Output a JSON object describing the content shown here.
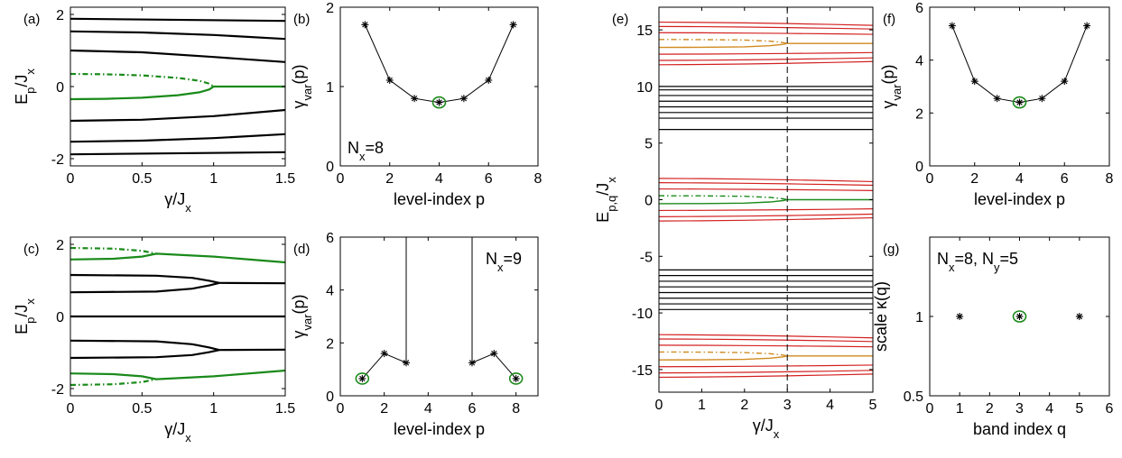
{
  "chart_data": [
    {
      "panel": "(a)",
      "type": "line",
      "xlabel_main": "γ/J",
      "xlabel_sub": "x",
      "ylabel_main": "E",
      "ylabel_sub1": "p",
      "ylabel_rest": "/J",
      "ylabel_sub2": "x",
      "xlim": [
        0,
        1.5
      ],
      "ylim": [
        -2.2,
        2.2
      ],
      "xticks": [
        0,
        0.5,
        1,
        1.5
      ],
      "xtick_labels": [
        "0",
        "0.5",
        "1",
        "1.5"
      ],
      "yticks": [
        -2,
        0,
        2
      ],
      "ytick_labels": [
        "-2",
        "0",
        "2"
      ],
      "series": [
        {
          "color": "#000000",
          "dash": "solid",
          "x": [
            0,
            1.5
          ],
          "y": [
            1.88,
            1.82
          ]
        },
        {
          "color": "#000000",
          "dash": "solid",
          "x": [
            0,
            0.5,
            1,
            1.5
          ],
          "y": [
            1.53,
            1.5,
            1.43,
            1.32
          ]
        },
        {
          "color": "#000000",
          "dash": "solid",
          "x": [
            0,
            0.5,
            1,
            1.5
          ],
          "y": [
            1.0,
            0.95,
            0.82,
            0.68
          ]
        },
        {
          "color": "#000000",
          "dash": "solid",
          "x": [
            0,
            0.5,
            1,
            1.5
          ],
          "y": [
            -0.95,
            -0.92,
            -0.82,
            -0.65
          ]
        },
        {
          "color": "#000000",
          "dash": "solid",
          "x": [
            0,
            0.5,
            1,
            1.5
          ],
          "y": [
            -1.53,
            -1.5,
            -1.43,
            -1.32
          ]
        },
        {
          "color": "#000000",
          "dash": "solid",
          "x": [
            0,
            1.5
          ],
          "y": [
            -1.88,
            -1.82
          ]
        },
        {
          "color": "#1a8a1a",
          "dash": "dashdot",
          "x": [
            0,
            0.25,
            0.5,
            0.75,
            0.9,
            0.97,
            1.0
          ],
          "y": [
            0.35,
            0.34,
            0.31,
            0.24,
            0.16,
            0.08,
            0.0
          ]
        },
        {
          "color": "#1a8a1a",
          "dash": "solid",
          "x": [
            0,
            0.25,
            0.5,
            0.75,
            0.9,
            0.97,
            1.0,
            1.5
          ],
          "y": [
            -0.35,
            -0.34,
            -0.31,
            -0.24,
            -0.16,
            -0.08,
            0.0,
            0.0
          ]
        }
      ]
    },
    {
      "panel": "(b)",
      "type": "line",
      "ylabel_main": "γ",
      "ylabel_sub1": "var",
      "ylabel_rest": "(p)",
      "xlabel": "level-index p",
      "annotation_main": "N",
      "annotation_sub": "x",
      "annotation_rest": "=8",
      "xlim": [
        0,
        8
      ],
      "ylim": [
        0,
        2
      ],
      "xticks": [
        0,
        2,
        4,
        6,
        8
      ],
      "xtick_labels": [
        "0",
        "2",
        "4",
        "6",
        "8"
      ],
      "yticks": [
        0,
        1,
        2
      ],
      "ytick_labels": [
        "0",
        "1",
        "2"
      ],
      "x": [
        1,
        2,
        3,
        4,
        5,
        6,
        7
      ],
      "y": [
        1.78,
        1.08,
        0.85,
        0.8,
        0.85,
        1.08,
        1.78
      ],
      "highlight_x": 4
    },
    {
      "panel": "(c)",
      "type": "line",
      "xlabel_main": "γ/J",
      "xlabel_sub": "x",
      "ylabel_main": "E",
      "ylabel_sub1": "p",
      "ylabel_rest": "/J",
      "ylabel_sub2": "x",
      "xlim": [
        0,
        1.5
      ],
      "ylim": [
        -2.2,
        2.2
      ],
      "xticks": [
        0,
        0.5,
        1,
        1.5
      ],
      "xtick_labels": [
        "0",
        "0.5",
        "1",
        "1.5"
      ],
      "yticks": [
        -2,
        0,
        2
      ],
      "ytick_labels": [
        "-2",
        "0",
        "2"
      ],
      "series": [
        {
          "color": "#000000",
          "dash": "solid",
          "x": [
            0,
            0.6,
            0.85,
            0.97,
            1.04
          ],
          "y": [
            1.15,
            1.13,
            1.07,
            0.99,
            0.93
          ]
        },
        {
          "color": "#000000",
          "dash": "solid",
          "x": [
            0,
            0.6,
            0.85,
            0.97,
            1.04
          ],
          "y": [
            0.67,
            0.69,
            0.77,
            0.86,
            0.93
          ]
        },
        {
          "color": "#000000",
          "dash": "solid",
          "x": [
            1.04,
            1.5
          ],
          "y": [
            0.93,
            0.92
          ]
        },
        {
          "color": "#000000",
          "dash": "solid",
          "x": [
            0,
            1.5
          ],
          "y": [
            0,
            0
          ]
        },
        {
          "color": "#000000",
          "dash": "solid",
          "x": [
            0,
            0.6,
            0.85,
            0.97,
            1.04
          ],
          "y": [
            -1.15,
            -1.13,
            -1.07,
            -0.99,
            -0.93
          ]
        },
        {
          "color": "#000000",
          "dash": "solid",
          "x": [
            0,
            0.6,
            0.85,
            0.97,
            1.04
          ],
          "y": [
            -0.67,
            -0.69,
            -0.77,
            -0.86,
            -0.93
          ]
        },
        {
          "color": "#000000",
          "dash": "solid",
          "x": [
            1.04,
            1.5
          ],
          "y": [
            -0.93,
            -0.92
          ]
        },
        {
          "color": "#1a8a1a",
          "dash": "dashdot",
          "x": [
            0,
            0.3,
            0.5,
            0.6
          ],
          "y": [
            1.9,
            1.88,
            1.82,
            1.74
          ]
        },
        {
          "color": "#1a8a1a",
          "dash": "solid",
          "x": [
            0,
            0.3,
            0.5,
            0.6,
            1.0,
            1.5
          ],
          "y": [
            1.58,
            1.6,
            1.66,
            1.74,
            1.66,
            1.5
          ]
        },
        {
          "color": "#1a8a1a",
          "dash": "dashdot",
          "x": [
            0,
            0.3,
            0.5,
            0.6
          ],
          "y": [
            -1.9,
            -1.88,
            -1.82,
            -1.74
          ]
        },
        {
          "color": "#1a8a1a",
          "dash": "solid",
          "x": [
            0,
            0.3,
            0.5,
            0.6,
            1.0,
            1.5
          ],
          "y": [
            -1.58,
            -1.6,
            -1.66,
            -1.74,
            -1.66,
            -1.5
          ]
        }
      ]
    },
    {
      "panel": "(d)",
      "type": "line",
      "ylabel_main": "γ",
      "ylabel_sub1": "var",
      "ylabel_rest": "(p)",
      "xlabel": "level-index p",
      "annotation_main": "N",
      "annotation_sub": "x",
      "annotation_rest": "=9",
      "xlim": [
        0,
        9
      ],
      "ylim": [
        0,
        6
      ],
      "xticks": [
        0,
        2,
        4,
        6,
        8
      ],
      "xtick_labels": [
        "0",
        "2",
        "4",
        "6",
        "8"
      ],
      "yticks": [
        0,
        2,
        4,
        6
      ],
      "ytick_labels": [
        "0",
        "2",
        "4",
        "6"
      ],
      "segments": [
        {
          "x": [
            1,
            2,
            3,
            3
          ],
          "y": [
            0.65,
            1.6,
            1.25,
            6.5
          ]
        },
        {
          "x": [
            6,
            6,
            7,
            8
          ],
          "y": [
            6.5,
            1.25,
            1.6,
            0.65
          ]
        }
      ],
      "points_x": [
        1,
        2,
        3,
        6,
        7,
        8
      ],
      "points_y": [
        0.65,
        1.6,
        1.25,
        1.25,
        1.6,
        0.65
      ],
      "highlight_x": [
        1,
        8
      ]
    },
    {
      "panel": "(e)",
      "type": "line",
      "xlabel_main": "γ/J",
      "xlabel_sub": "x",
      "ylabel_main": "E",
      "ylabel_sub1": "p,q",
      "ylabel_rest": "/J",
      "ylabel_sub2": "x",
      "xlim": [
        0,
        5
      ],
      "ylim": [
        -17,
        17
      ],
      "xticks": [
        0,
        1,
        2,
        3,
        4,
        5
      ],
      "xtick_labels": [
        "0",
        "1",
        "2",
        "3",
        "4",
        "5"
      ],
      "yticks": [
        -15,
        -10,
        -5,
        0,
        5,
        10,
        15
      ],
      "ytick_labels": [
        "-15",
        "-10",
        "-5",
        "0",
        "5",
        "10",
        "15"
      ],
      "vline_x": 3,
      "black_levels": [
        6.2,
        7.2,
        7.7,
        8.2,
        8.7,
        9.2,
        9.7,
        10.0,
        -6.2,
        -6.7,
        -7.2,
        -7.7,
        -8.2,
        -8.7,
        -9.2,
        -9.7
      ],
      "red_bands": [
        {
          "center": 13.8,
          "levels": [
            1.88,
            1.5,
            0.95,
            -0.95,
            -1.5,
            -1.88
          ]
        },
        {
          "center": 0.0,
          "levels": [
            1.88,
            1.5,
            0.95,
            -0.95,
            -1.5,
            -1.88
          ]
        },
        {
          "center": -13.8,
          "levels": [
            1.88,
            1.5,
            0.95,
            -0.95,
            -1.5,
            -1.88
          ]
        }
      ],
      "bands_with_pair": [
        {
          "center": 13.8,
          "dash_color": "#d08a20",
          "solid_color": "#d08a20"
        },
        {
          "center": 0.0,
          "dash_color": "#1a8a1a",
          "solid_color": "#1a8a1a"
        },
        {
          "center": -13.8,
          "dash_color": "#d08a20",
          "solid_color": "#d08a20"
        }
      ]
    },
    {
      "panel": "(f)",
      "type": "line",
      "ylabel_main": "γ",
      "ylabel_sub1": "var",
      "ylabel_rest": "(p)",
      "xlabel": "level-index p",
      "xlim": [
        0,
        8
      ],
      "ylim": [
        0,
        6
      ],
      "xticks": [
        0,
        2,
        4,
        6,
        8
      ],
      "xtick_labels": [
        "0",
        "2",
        "4",
        "6",
        "8"
      ],
      "yticks": [
        0,
        2,
        4,
        6
      ],
      "ytick_labels": [
        "0",
        "2",
        "4",
        "6"
      ],
      "x": [
        1,
        2,
        3,
        4,
        5,
        6,
        7
      ],
      "y": [
        5.3,
        3.2,
        2.55,
        2.4,
        2.55,
        3.2,
        5.3
      ],
      "highlight_x": 4
    },
    {
      "panel": "(g)",
      "type": "scatter",
      "ylabel": "scale κ(q)",
      "xlabel": "band index q",
      "annotation_main": "N",
      "annotation_sub": "x",
      "annotation_rest": "=8, N",
      "annotation_sub2": "y",
      "annotation_rest2": "=5",
      "xlim": [
        0,
        6
      ],
      "ylim": [
        0.5,
        1.5
      ],
      "xticks": [
        0,
        1,
        2,
        3,
        4,
        5,
        6
      ],
      "xtick_labels": [
        "0",
        "1",
        "2",
        "3",
        "4",
        "5",
        "6"
      ],
      "yticks": [
        0.5,
        1
      ],
      "ytick_labels": [
        "0.5",
        "1"
      ],
      "x": [
        1,
        3,
        5
      ],
      "y": [
        1,
        1,
        1
      ],
      "highlight_x": 3
    }
  ]
}
